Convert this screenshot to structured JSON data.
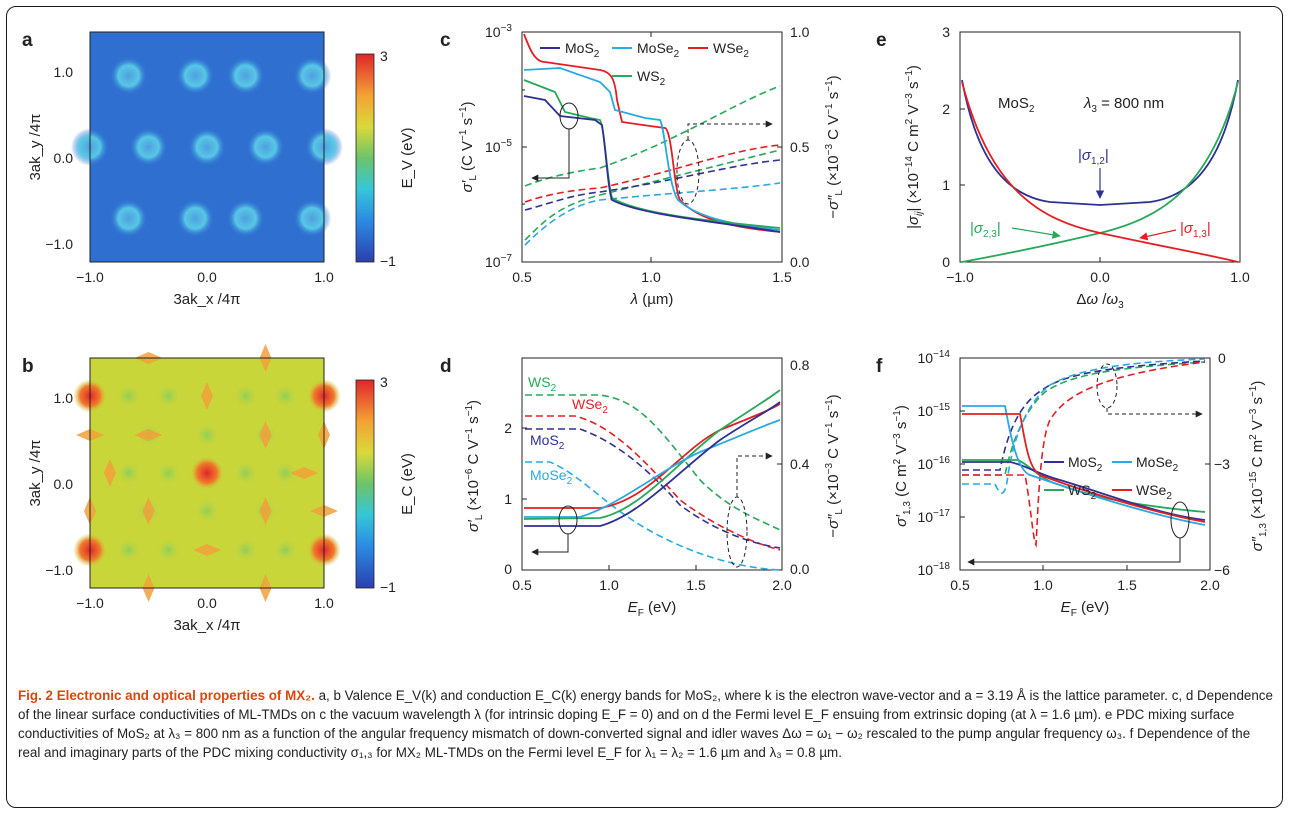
{
  "panels": {
    "a": {
      "label": "a",
      "xlabel": "3ak_x /4π",
      "ylabel": "3ak_y /4π",
      "colorbar_label": "E_V (eV)",
      "cbar_max": "3",
      "cbar_min": "−1",
      "xticks": [
        "−1.0",
        "0.0",
        "1.0"
      ],
      "yticks": [
        "1.0",
        "0.0",
        "−1.0"
      ]
    },
    "b": {
      "label": "b",
      "xlabel": "3ak_x /4π",
      "ylabel": "3ak_y /4π",
      "colorbar_label": "E_C (eV)",
      "cbar_max": "3",
      "cbar_min": "−1",
      "xticks": [
        "−1.0",
        "0.0",
        "1.0"
      ],
      "yticks": [
        "1.0",
        "0.0",
        "−1.0"
      ]
    },
    "c": {
      "label": "c",
      "xlabel": "λ (µm)",
      "ylabel_left": "σ′L (C V⁻¹ s⁻¹)",
      "ylabel_right": "−σ″L (×10⁻³ C V⁻¹ s⁻¹)",
      "xticks": [
        "0.5",
        "1.0",
        "1.5"
      ],
      "yticks_left": [
        "10⁻³",
        "10⁻⁵",
        "10⁻⁷"
      ],
      "yticks_right": [
        "1.0",
        "0.5",
        "0.0"
      ],
      "legend": [
        "MoS2",
        "MoSe2",
        "WSe2",
        "WS2"
      ]
    },
    "d": {
      "label": "d",
      "xlabel": "E_F (eV)",
      "ylabel_left": "σ′L (×10⁻⁶ C V⁻¹ s⁻¹)",
      "ylabel_right": "−σ″L (×10⁻³ C V⁻¹ s⁻¹)",
      "xticks": [
        "0.5",
        "1.0",
        "1.5",
        "2.0"
      ],
      "yticks_left": [
        "2",
        "1",
        "0"
      ],
      "yticks_right": [
        "0.8",
        "0.4",
        "0.0"
      ],
      "labels": [
        "WS2",
        "WSe2",
        "MoS2",
        "MoSe2"
      ]
    },
    "e": {
      "label": "e",
      "xlabel": "Δω /ω3",
      "ylabel": "|σij| (×10⁻¹⁴ C m² V⁻³ s⁻¹)",
      "xticks": [
        "−1.0",
        "0.0",
        "1.0"
      ],
      "yticks": [
        "3",
        "2",
        "1",
        "0"
      ],
      "material": "MoS2",
      "wavelength": "λ3 = 800 nm",
      "labels": [
        "|σ1,2|",
        "|σ2,3|",
        "|σ1,3|"
      ]
    },
    "f": {
      "label": "f",
      "xlabel": "E_F (eV)",
      "ylabel_left": "σ′1,3 (C m² V⁻³ s⁻¹)",
      "ylabel_right": "σ″1,3 (×10⁻¹⁵ C m² V⁻³ s⁻¹)",
      "xticks": [
        "0.5",
        "1.0",
        "1.5",
        "2.0"
      ],
      "yticks_left": [
        "10⁻¹⁴",
        "10⁻¹⁵",
        "10⁻¹⁶",
        "10⁻¹⁷",
        "10⁻¹⁸"
      ],
      "yticks_right": [
        "0",
        "−3",
        "−6"
      ],
      "legend": [
        "MoS2",
        "MoSe2",
        "WS2",
        "WSe2"
      ]
    }
  },
  "colors": {
    "MoS2": "#2e3192",
    "MoSe2": "#29a9e0",
    "WSe2": "#e31e24",
    "WS2": "#27a85a"
  },
  "caption": {
    "title": "Fig. 2 Electronic and optical properties of MX₂.",
    "text": " a, b Valence E_V(k) and conduction E_C(k) energy bands for MoS₂, where k is the electron wave-vector and a = 3.19 Å is the lattice parameter. c, d Dependence of the linear surface conductivities of ML-TMDs on c the vacuum wavelength λ (for intrinsic doping E_F = 0) and on d the Fermi level E_F ensuing from extrinsic doping (at λ = 1.6 µm). e PDC mixing surface conductivities of MoS₂ at λ₃ = 800 nm as a function of the angular frequency mismatch of down-converted signal and idler waves Δω = ω₁ − ω₂ rescaled to the pump angular frequency ω₃. f Dependence of the real and imaginary parts of the PDC mixing conductivity σ₁,₃ for MX₂ ML-TMDs on the Fermi level E_F for λ₁ = λ₂ = 1.6 µm and λ₃ = 0.8 µm."
  }
}
